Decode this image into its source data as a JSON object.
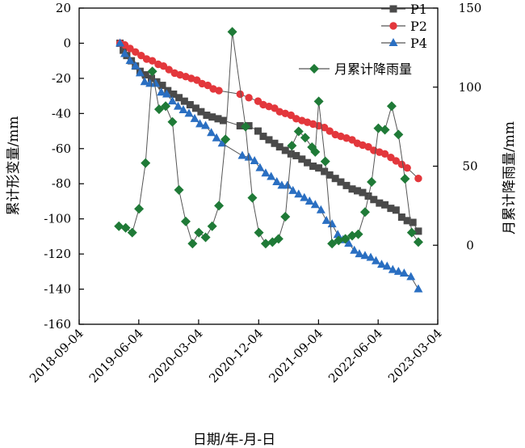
{
  "chart_data": {
    "type": "line",
    "xlabel": "日期/年-月-日",
    "ylabel_left": "累计形变量/mm",
    "ylabel_right": "月累计降雨量/mm",
    "ylim_left": [
      -160,
      20
    ],
    "ylim_right": [
      -50,
      150
    ],
    "x_ticks": [
      "2018-09-04",
      "2019-06-04",
      "2020-03-04",
      "2020-12-04",
      "2021-09-04",
      "2022-06-04",
      "2023-03-04"
    ],
    "y_left_ticks": [
      20,
      0,
      -20,
      -40,
      -60,
      -80,
      -100,
      -120,
      -140,
      -160
    ],
    "y_right_ticks": [
      150,
      100,
      50,
      0
    ],
    "legend_position": "top-right",
    "colors": {
      "P1": "#4a4a4a",
      "P2": "#e3373c",
      "P4": "#2a6fc2",
      "rain": "#1f7a37"
    },
    "series": [
      {
        "name": "P1",
        "axis": "left",
        "marker": "square",
        "x": [
          "2019-03-10",
          "2019-03-25",
          "2019-04-10",
          "2019-05-01",
          "2019-05-20",
          "2019-06-10",
          "2019-07-05",
          "2019-08-01",
          "2019-08-25",
          "2019-09-20",
          "2019-10-15",
          "2019-11-10",
          "2019-12-05",
          "2019-12-30",
          "2020-01-25",
          "2020-02-20",
          "2020-03-15",
          "2020-04-10",
          "2020-05-05",
          "2020-06-01",
          "2020-06-25",
          "2020-09-10",
          "2020-10-20",
          "2020-12-01",
          "2020-12-25",
          "2021-01-20",
          "2021-02-15",
          "2021-03-10",
          "2021-04-05",
          "2021-05-01",
          "2021-05-25",
          "2021-06-20",
          "2021-07-15",
          "2021-08-10",
          "2021-09-05",
          "2021-10-01",
          "2021-10-25",
          "2021-11-20",
          "2021-12-15",
          "2022-01-10",
          "2022-02-05",
          "2022-03-01",
          "2022-03-25",
          "2022-04-20",
          "2022-05-15",
          "2022-06-10",
          "2022-07-05",
          "2022-08-01",
          "2022-08-25",
          "2022-09-20",
          "2022-10-15",
          "2022-11-10",
          "2022-12-05"
        ],
        "values": [
          0,
          -4,
          -7,
          -10,
          -13,
          -16,
          -18,
          -20,
          -22,
          -24,
          -27,
          -29,
          -31,
          -33,
          -35,
          -37,
          -39,
          -41,
          -42,
          -43,
          -44,
          -47,
          -47,
          -50,
          -53,
          -55,
          -57,
          -59,
          -61,
          -63,
          -64,
          -66,
          -68,
          -70,
          -71,
          -73,
          -75,
          -77,
          -79,
          -81,
          -83,
          -84,
          -85,
          -87,
          -89,
          -91,
          -92,
          -94,
          -95,
          -99,
          -101,
          -102,
          -107
        ]
      },
      {
        "name": "P2",
        "axis": "left",
        "marker": "circle",
        "x": [
          "2019-03-10",
          "2019-04-01",
          "2019-04-25",
          "2019-05-20",
          "2019-06-15",
          "2019-07-10",
          "2019-08-05",
          "2019-09-01",
          "2019-09-25",
          "2019-10-20",
          "2019-11-15",
          "2019-12-10",
          "2020-01-05",
          "2020-01-30",
          "2020-02-25",
          "2020-03-20",
          "2020-04-15",
          "2020-05-10",
          "2020-06-05",
          "2020-09-10",
          "2020-10-20",
          "2020-12-01",
          "2020-12-25",
          "2021-01-20",
          "2021-02-15",
          "2021-03-10",
          "2021-04-05",
          "2021-05-01",
          "2021-05-25",
          "2021-06-20",
          "2021-07-15",
          "2021-08-10",
          "2021-09-05",
          "2021-10-01",
          "2021-10-25",
          "2021-11-20",
          "2021-12-15",
          "2022-01-10",
          "2022-02-05",
          "2022-03-01",
          "2022-03-25",
          "2022-04-20",
          "2022-05-15",
          "2022-06-10",
          "2022-07-05",
          "2022-08-01",
          "2022-08-25",
          "2022-09-20",
          "2022-10-15",
          "2022-12-05"
        ],
        "values": [
          0,
          -1,
          -3,
          -5,
          -7,
          -9,
          -10,
          -12,
          -13,
          -15,
          -17,
          -18,
          -19,
          -20,
          -21,
          -23,
          -24,
          -26,
          -27,
          -29,
          -31,
          -33,
          -35,
          -36,
          -37,
          -39,
          -40,
          -41,
          -43,
          -44,
          -45,
          -46,
          -47,
          -48,
          -50,
          -52,
          -53,
          -54,
          -55,
          -57,
          -58,
          -59,
          -61,
          -62,
          -63,
          -65,
          -67,
          -69,
          -71,
          -77
        ]
      },
      {
        "name": "P4",
        "axis": "left",
        "marker": "triangle",
        "x": [
          "2019-03-10",
          "2019-04-01",
          "2019-04-25",
          "2019-05-20",
          "2019-06-10",
          "2019-07-01",
          "2019-07-25",
          "2019-08-20",
          "2019-09-15",
          "2019-10-10",
          "2019-11-05",
          "2019-12-01",
          "2019-12-25",
          "2020-01-20",
          "2020-02-15",
          "2020-03-10",
          "2020-04-05",
          "2020-05-01",
          "2020-05-25",
          "2020-06-20",
          "2020-09-20",
          "2020-10-20",
          "2020-11-15",
          "2020-12-10",
          "2021-01-05",
          "2021-01-30",
          "2021-02-25",
          "2021-03-20",
          "2021-04-15",
          "2021-05-10",
          "2021-06-05",
          "2021-07-01",
          "2021-07-25",
          "2021-08-20",
          "2021-09-15",
          "2021-10-10",
          "2021-11-05",
          "2021-12-01",
          "2021-12-25",
          "2022-01-20",
          "2022-02-15",
          "2022-03-10",
          "2022-04-05",
          "2022-05-01",
          "2022-05-25",
          "2022-06-20",
          "2022-07-15",
          "2022-08-10",
          "2022-09-05",
          "2022-10-01",
          "2022-11-01",
          "2022-12-05"
        ],
        "values": [
          0,
          -6,
          -10,
          -13,
          -17,
          -22,
          -23,
          -23,
          -28,
          -29,
          -33,
          -36,
          -38,
          -40,
          -43,
          -46,
          -47,
          -51,
          -54,
          -57,
          -64,
          -65,
          -67,
          -71,
          -74,
          -76,
          -79,
          -81,
          -81,
          -84,
          -86,
          -88,
          -90,
          -92,
          -95,
          -101,
          -103,
          -109,
          -112,
          -114,
          -118,
          -120,
          -121,
          -122,
          -124,
          -126,
          -127,
          -129,
          -130,
          -131,
          -133,
          -140
        ]
      },
      {
        "name": "月累计降雨量",
        "axis": "right",
        "marker": "diamond",
        "x": [
          "2019-03-05",
          "2019-04-05",
          "2019-05-05",
          "2019-06-05",
          "2019-07-05",
          "2019-08-05",
          "2019-09-05",
          "2019-10-05",
          "2019-11-05",
          "2019-12-05",
          "2020-01-05",
          "2020-02-05",
          "2020-03-05",
          "2020-04-05",
          "2020-05-05",
          "2020-06-05",
          "2020-07-05",
          "2020-08-05",
          "2020-10-05",
          "2020-11-05",
          "2020-12-05",
          "2021-01-05",
          "2021-02-05",
          "2021-03-05",
          "2021-04-05",
          "2021-05-05",
          "2021-06-05",
          "2021-07-05",
          "2021-08-05",
          "2021-08-20",
          "2021-09-05",
          "2021-10-05",
          "2021-11-05",
          "2021-12-05",
          "2022-01-05",
          "2022-02-05",
          "2022-03-05",
          "2022-04-05",
          "2022-05-05",
          "2022-06-05",
          "2022-07-05",
          "2022-08-05",
          "2022-09-05",
          "2022-10-05",
          "2022-11-05",
          "2022-12-05"
        ],
        "values": [
          12,
          11,
          8,
          23,
          52,
          110,
          86,
          88,
          78,
          35,
          15,
          1,
          8,
          5,
          12,
          25,
          67,
          135,
          75,
          30,
          8,
          1,
          2,
          4,
          18,
          63,
          72,
          68,
          62,
          59,
          91,
          53,
          1,
          3,
          4,
          6,
          7,
          21,
          40,
          74,
          73,
          88,
          70,
          42,
          8,
          2
        ]
      }
    ]
  }
}
